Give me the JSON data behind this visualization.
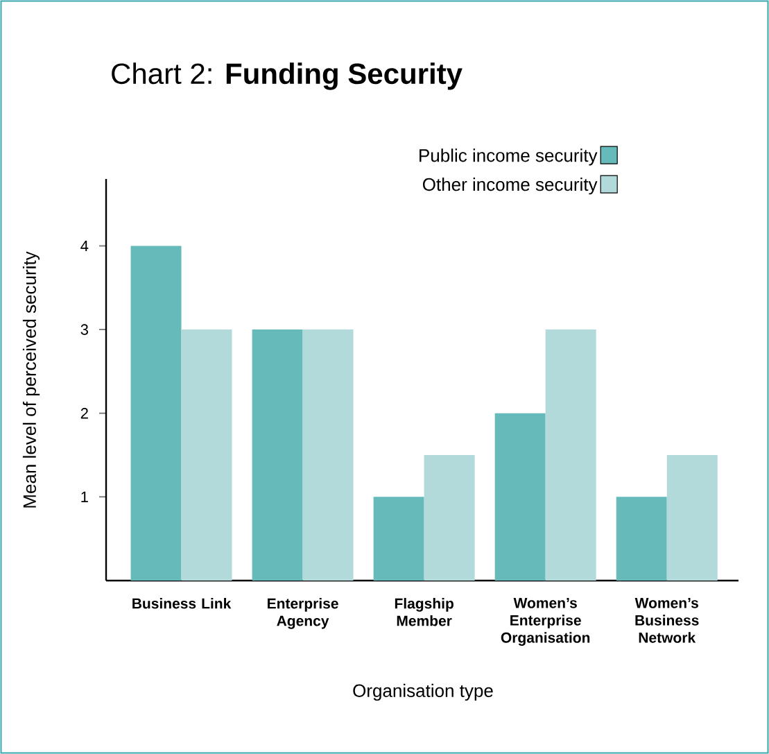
{
  "chart_data": {
    "type": "bar",
    "title": "Chart 2: **Funding Security**",
    "xlabel": "Organisation type",
    "ylabel": "Mean level of perceived security",
    "categories": [
      "Business Link",
      "Enterprise Agency",
      "Flagship Member",
      "Women’s Enterprise Organisation",
      "Women’s Business Network"
    ],
    "series": [
      {
        "name": "Public income security",
        "color": "#66baba",
        "values": [
          4,
          3,
          1,
          2,
          1
        ]
      },
      {
        "name": "Other income security",
        "color": "#b2dada",
        "values": [
          3,
          3,
          1.5,
          3,
          1.5
        ]
      }
    ],
    "ylim": [
      0,
      4.8
    ],
    "yticks": [
      1,
      2,
      3,
      4
    ],
    "grid": false,
    "legend": "top right"
  }
}
